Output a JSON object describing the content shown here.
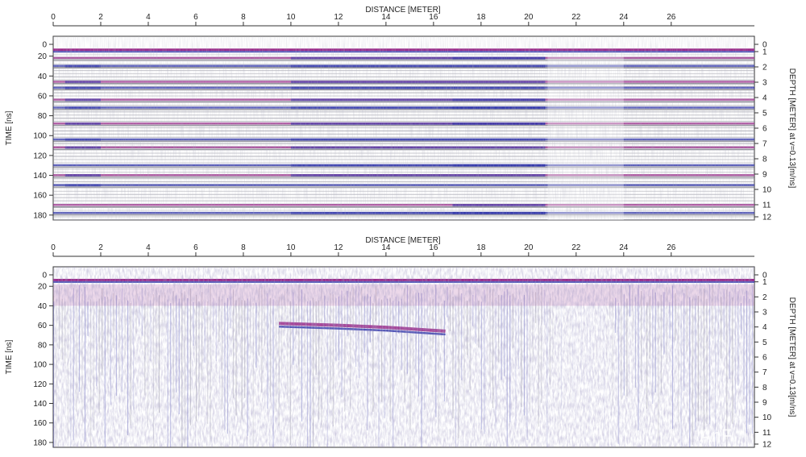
{
  "chart_data": [
    {
      "type": "heatmap",
      "title": "",
      "xlabel": "DISTANCE [METER]",
      "ylabel": "TIME [ns]",
      "y2label": "DEPTH [METER] at v=0.13[m/ns]",
      "x_ticks": [
        0,
        2,
        4,
        6,
        8,
        10,
        12,
        14,
        16,
        18,
        20,
        22,
        24,
        26
      ],
      "y_ticks": [
        0,
        20,
        40,
        60,
        80,
        100,
        120,
        140,
        160,
        180
      ],
      "y2_ticks": [
        0,
        1,
        2,
        3,
        4,
        5,
        6,
        7,
        8,
        9,
        10,
        11,
        12
      ],
      "xlim": [
        0,
        29.5
      ],
      "ylim": [
        0,
        185
      ],
      "y2lim": [
        0,
        12
      ],
      "grid": false,
      "colors": {
        "positive": "#2a2fa8",
        "negative": "#9a2a8a",
        "background": "#ffffff"
      },
      "features": {
        "surface_time_ns": 14,
        "reflector_times_ns": [
          22,
          30,
          46,
          52,
          64,
          72,
          88,
          104,
          112,
          130,
          140,
          150,
          170,
          178
        ],
        "style": "horizontal reflectors"
      }
    },
    {
      "type": "heatmap",
      "title": "",
      "xlabel": "DISTANCE [METER]",
      "ylabel": "TIME [ns]",
      "y2label": "DEPTH [METER] at v=0.13[m/ns]",
      "x_ticks": [
        0,
        2,
        4,
        6,
        8,
        10,
        12,
        14,
        16,
        18,
        20,
        22,
        24,
        26
      ],
      "y_ticks": [
        0,
        20,
        40,
        60,
        80,
        100,
        120,
        140,
        160,
        180
      ],
      "y2_ticks": [
        0,
        1,
        2,
        3,
        4,
        5,
        6,
        7,
        8,
        9,
        10,
        11,
        12
      ],
      "xlim": [
        0,
        29.5
      ],
      "ylim": [
        0,
        185
      ],
      "y2lim": [
        0,
        12
      ],
      "grid": false,
      "colors": {
        "positive": "#2a2fa8",
        "negative": "#9a2a8a",
        "background": "#ffffff"
      },
      "features": {
        "surface_time_ns": 14,
        "dipping_reflector": {
          "x": [
            9.5,
            12,
            14,
            16.5
          ],
          "time_ns": [
            58,
            60,
            62,
            66
          ]
        },
        "style": "scattered"
      }
    }
  ],
  "watermark": "AnF"
}
